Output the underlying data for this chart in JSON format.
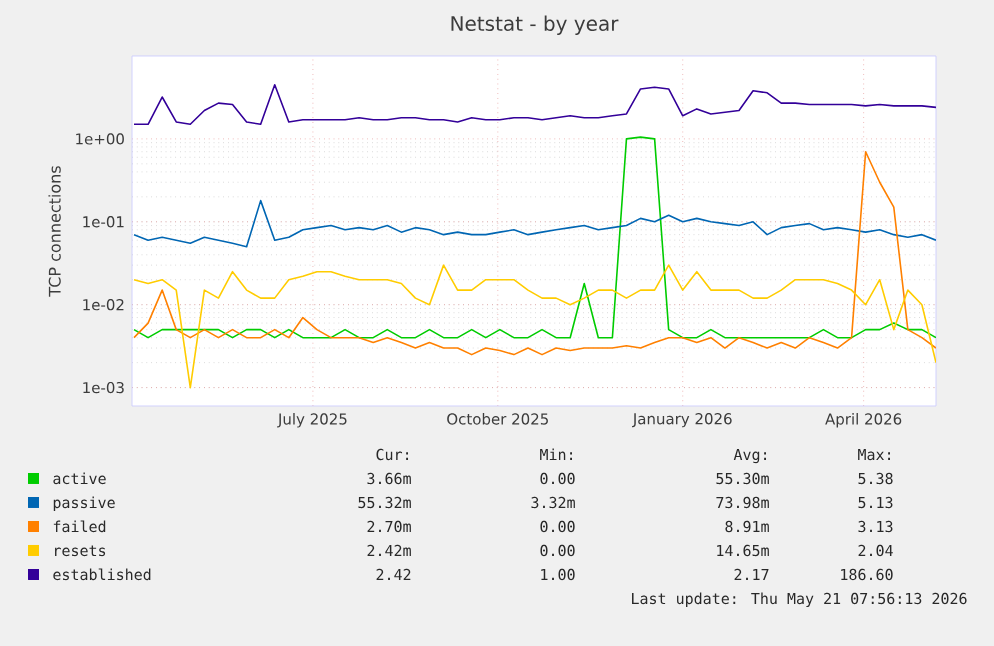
{
  "chart_data": {
    "type": "line",
    "title": "Netstat - by year",
    "ylabel": "TCP connections",
    "x": [
      "2025-04-03",
      "2025-04-10",
      "2025-04-17",
      "2025-04-24",
      "2025-05-01",
      "2025-05-08",
      "2025-05-15",
      "2025-05-22",
      "2025-05-29",
      "2025-06-05",
      "2025-06-12",
      "2025-06-19",
      "2025-06-26",
      "2025-07-03",
      "2025-07-10",
      "2025-07-17",
      "2025-07-24",
      "2025-07-31",
      "2025-08-07",
      "2025-08-14",
      "2025-08-21",
      "2025-08-28",
      "2025-09-04",
      "2025-09-11",
      "2025-09-18",
      "2025-09-25",
      "2025-10-02",
      "2025-10-09",
      "2025-10-16",
      "2025-10-23",
      "2025-10-30",
      "2025-11-06",
      "2025-11-13",
      "2025-11-20",
      "2025-11-27",
      "2025-12-04",
      "2025-12-11",
      "2025-12-18",
      "2025-12-25",
      "2026-01-01",
      "2026-01-08",
      "2026-01-15",
      "2026-01-22",
      "2026-01-29",
      "2026-02-05",
      "2026-02-12",
      "2026-02-19",
      "2026-02-26",
      "2026-03-05",
      "2026-03-12",
      "2026-03-19",
      "2026-03-26",
      "2026-04-02",
      "2026-04-09",
      "2026-04-16",
      "2026-04-23",
      "2026-04-30",
      "2026-05-07"
    ],
    "xlim": [
      "2025-04-02",
      "2026-05-07"
    ],
    "xticks": [
      {
        "value": "2025-07-01",
        "label": "July 2025"
      },
      {
        "value": "2025-10-01",
        "label": "October 2025"
      },
      {
        "value": "2026-01-01",
        "label": "January 2026"
      },
      {
        "value": "2026-04-01",
        "label": "April 2026"
      }
    ],
    "log": "y",
    "ylim": [
      0.0006,
      10
    ],
    "yticks": [
      {
        "value": 0.001,
        "label": "1e-03"
      },
      {
        "value": 0.01,
        "label": "1e-02"
      },
      {
        "value": 0.1,
        "label": "1e-01"
      },
      {
        "value": 1,
        "label": "1e+00"
      }
    ],
    "grid": true,
    "legend": "bottom",
    "marker": "none",
    "line_style": "solid",
    "series": [
      {
        "name": "active",
        "color": "#00cc00",
        "values": [
          0.005,
          0.004,
          0.005,
          0.005,
          0.005,
          0.005,
          0.005,
          0.004,
          0.005,
          0.005,
          0.004,
          0.005,
          0.004,
          0.004,
          0.004,
          0.005,
          0.004,
          0.004,
          0.005,
          0.004,
          0.004,
          0.005,
          0.004,
          0.004,
          0.005,
          0.004,
          0.005,
          0.004,
          0.004,
          0.005,
          0.004,
          0.004,
          0.018,
          0.004,
          0.004,
          1.0,
          1.05,
          1.0,
          0.005,
          0.004,
          0.004,
          0.005,
          0.004,
          0.004,
          0.004,
          0.004,
          0.004,
          0.004,
          0.004,
          0.005,
          0.004,
          0.004,
          0.005,
          0.005,
          0.006,
          0.005,
          0.005,
          0.004
        ]
      },
      {
        "name": "passive",
        "color": "#0066b3",
        "values": [
          0.07,
          0.06,
          0.065,
          0.06,
          0.055,
          0.065,
          0.06,
          0.055,
          0.05,
          0.18,
          0.06,
          0.065,
          0.08,
          0.085,
          0.09,
          0.08,
          0.085,
          0.08,
          0.09,
          0.075,
          0.085,
          0.08,
          0.07,
          0.075,
          0.07,
          0.07,
          0.075,
          0.08,
          0.07,
          0.075,
          0.08,
          0.085,
          0.09,
          0.08,
          0.085,
          0.09,
          0.11,
          0.1,
          0.12,
          0.1,
          0.11,
          0.1,
          0.095,
          0.09,
          0.1,
          0.07,
          0.085,
          0.09,
          0.095,
          0.08,
          0.085,
          0.08,
          0.075,
          0.08,
          0.07,
          0.065,
          0.07,
          0.06
        ]
      },
      {
        "name": "failed",
        "color": "#ff8000",
        "values": [
          0.004,
          0.006,
          0.015,
          0.005,
          0.004,
          0.005,
          0.004,
          0.005,
          0.004,
          0.004,
          0.005,
          0.004,
          0.007,
          0.005,
          0.004,
          0.004,
          0.004,
          0.0035,
          0.004,
          0.0035,
          0.003,
          0.0035,
          0.003,
          0.003,
          0.0025,
          0.003,
          0.0028,
          0.0025,
          0.003,
          0.0025,
          0.003,
          0.0028,
          0.003,
          0.003,
          0.003,
          0.0032,
          0.003,
          0.0035,
          0.004,
          0.004,
          0.0035,
          0.004,
          0.003,
          0.004,
          0.0035,
          0.003,
          0.0035,
          0.003,
          0.004,
          0.0035,
          0.003,
          0.004,
          0.7,
          0.3,
          0.15,
          0.005,
          0.004,
          0.003
        ]
      },
      {
        "name": "resets",
        "color": "#ffcc00",
        "values": [
          0.02,
          0.018,
          0.02,
          0.015,
          0.001,
          0.015,
          0.012,
          0.025,
          0.015,
          0.012,
          0.012,
          0.02,
          0.022,
          0.025,
          0.025,
          0.022,
          0.02,
          0.02,
          0.02,
          0.018,
          0.012,
          0.01,
          0.03,
          0.015,
          0.015,
          0.02,
          0.02,
          0.02,
          0.015,
          0.012,
          0.012,
          0.01,
          0.012,
          0.015,
          0.015,
          0.012,
          0.015,
          0.015,
          0.03,
          0.015,
          0.025,
          0.015,
          0.015,
          0.015,
          0.012,
          0.012,
          0.015,
          0.02,
          0.02,
          0.02,
          0.018,
          0.015,
          0.01,
          0.02,
          0.005,
          0.015,
          0.01,
          0.002
        ]
      },
      {
        "name": "established",
        "color": "#330099",
        "values": [
          1.5,
          1.5,
          3.2,
          1.6,
          1.5,
          2.2,
          2.7,
          2.6,
          1.6,
          1.5,
          4.5,
          1.6,
          1.7,
          1.7,
          1.7,
          1.7,
          1.8,
          1.7,
          1.7,
          1.8,
          1.8,
          1.7,
          1.7,
          1.6,
          1.8,
          1.7,
          1.7,
          1.8,
          1.8,
          1.7,
          1.8,
          1.9,
          1.8,
          1.8,
          1.9,
          2.0,
          4.0,
          4.2,
          4.0,
          1.9,
          2.3,
          2.0,
          2.1,
          2.2,
          3.8,
          3.6,
          2.7,
          2.7,
          2.6,
          2.6,
          2.6,
          2.6,
          2.5,
          2.6,
          2.5,
          2.5,
          2.5,
          2.4
        ]
      }
    ],
    "annotations": [
      "Cur:",
      "Min:",
      "Avg:",
      "Max:",
      "3.66m",
      "0.00",
      "55.30m",
      "5.38",
      "55.32m",
      "3.32m",
      "73.98m",
      "5.13",
      "2.70m",
      "0.00",
      "8.91m",
      "3.13",
      "2.42m",
      "0.00",
      "14.65m",
      "2.04",
      "2.42",
      "1.00",
      "2.17",
      "186.60",
      "Last update: Thu May 21 07:56:13 2026"
    ]
  }
}
